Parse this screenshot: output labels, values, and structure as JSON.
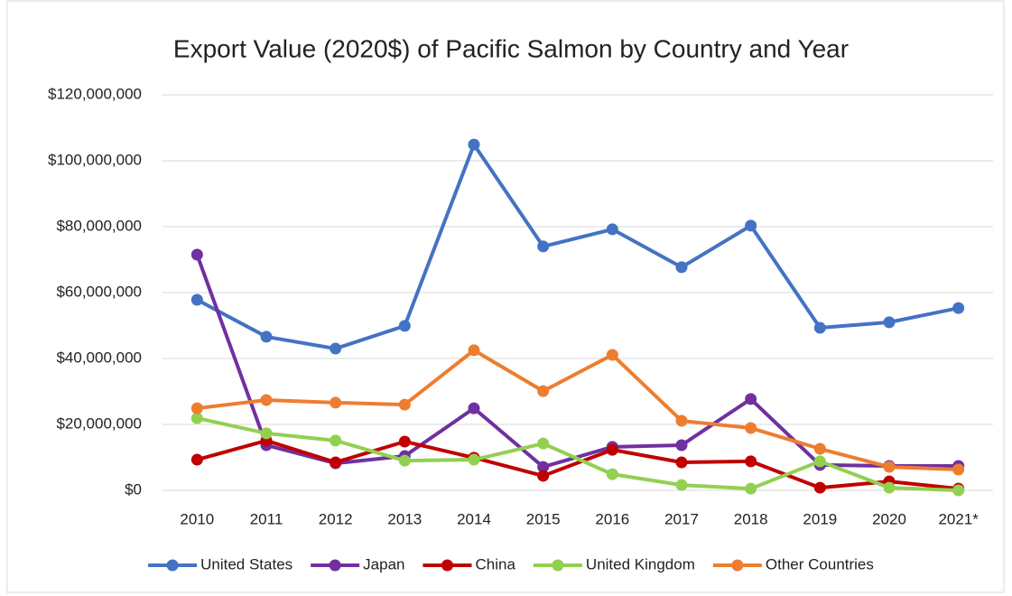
{
  "chart_data": {
    "type": "line",
    "title": "Export Value (2020$) of Pacific Salmon by Country and Year",
    "categories": [
      "2010",
      "2011",
      "2012",
      "2013",
      "2014",
      "2015",
      "2016",
      "2017",
      "2018",
      "2019",
      "2020",
      "2021*"
    ],
    "series": [
      {
        "name": "United States",
        "color": "#4472c4",
        "values": [
          57800000,
          46600000,
          43000000,
          49900000,
          104900000,
          74000000,
          79200000,
          67700000,
          80300000,
          49300000,
          51000000,
          55300000
        ]
      },
      {
        "name": "Japan",
        "color": "#7030a0",
        "values": [
          71500000,
          13700000,
          8200000,
          10400000,
          24900000,
          7100000,
          13200000,
          13700000,
          27700000,
          7700000,
          7400000,
          7400000
        ]
      },
      {
        "name": "China",
        "color": "#c00000",
        "values": [
          9300000,
          15100000,
          8500000,
          14800000,
          9900000,
          4400000,
          12300000,
          8500000,
          8800000,
          800000,
          2700000,
          500000
        ]
      },
      {
        "name": "United Kingdom",
        "color": "#92d050",
        "values": [
          21900000,
          17300000,
          15100000,
          9000000,
          9300000,
          14200000,
          4900000,
          1600000,
          500000,
          8800000,
          800000,
          0
        ]
      },
      {
        "name": "Other Countries",
        "color": "#ed7d31",
        "values": [
          24900000,
          27400000,
          26600000,
          26000000,
          42500000,
          30100000,
          41100000,
          21100000,
          18900000,
          12600000,
          7100000,
          6300000
        ]
      }
    ],
    "ylim": [
      0,
      120000000
    ],
    "yticks": [
      {
        "value": 0,
        "label": "$0"
      },
      {
        "value": 20000000,
        "label": "$20,000,000"
      },
      {
        "value": 40000000,
        "label": "$40,000,000"
      },
      {
        "value": 60000000,
        "label": "$60,000,000"
      },
      {
        "value": 80000000,
        "label": "$80,000,000"
      },
      {
        "value": 100000000,
        "label": "$100,000,000"
      },
      {
        "value": 120000000,
        "label": "$120,000,000"
      }
    ],
    "grid": true,
    "legend": "bottom"
  }
}
